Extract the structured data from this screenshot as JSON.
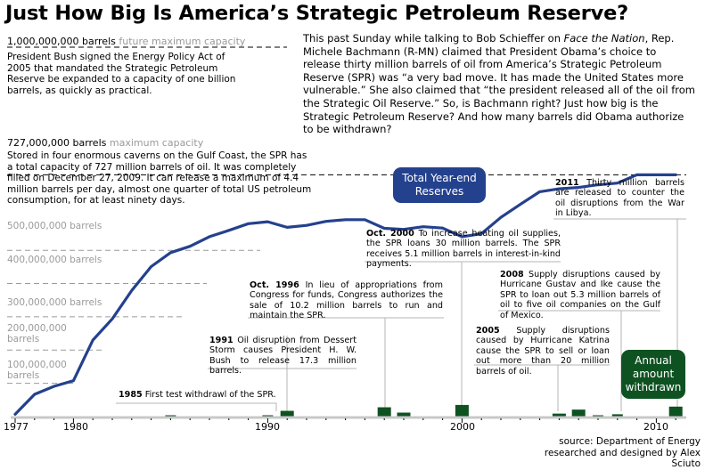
{
  "title": "Just How Big Is America’s Strategic Petroleum Reserve?",
  "capacity_future": {
    "value": "1,000,000,000 barrels",
    "label": "future maximum capacity"
  },
  "bush_text": "President Bush signed the Energy Policy Act of 2005 that mandated the Strategic Petroleum Reserve be expanded to a capacity of one billion barrels, as quickly as practical.",
  "intro": {
    "p1": "This past Sunday while talking to Bob Schieffer on ",
    "show": "Face the Nation",
    "p2": ", Rep. Michele Bachmann (R-MN) claimed that President Obama’s choice to release thirty million barrels of oil from America’s Strategic Petroleum Reserve (SPR) was “a very bad move. It has made the United States more vulnerable.” She also claimed that “the president released all of the oil from the Strategic Oil Reserve.” So, is Bachmann right? Just how big is the Strategic Petroleum Reserve? And how many barrels did Obama authorize to be withdrawn?"
  },
  "capacity_max": {
    "value": "727,000,000 barrels",
    "label": "maximum capacity"
  },
  "caverns_text": "Stored in four enormous caverns on the Gulf Coast, the SPR has a total capacity of 727 million barrels of oil. It was completely filled on December 27, 2009. It can release a maximum of 4.4 million barrels per day, almost one quarter of total US petroleum consumption, for at least ninety days.",
  "y_labels": [
    "500,000,000 barrels",
    "400,000,000 barrels",
    "300,000,000 barrels",
    "200,000,000 barrels",
    "100,000,000 barrels"
  ],
  "x_labels": [
    "1977",
    "1980",
    "1990",
    "2000",
    "2010"
  ],
  "pill_total": "Total Year-end Reserves",
  "pill_annual": "Annual amount withdrawn",
  "annotations": {
    "a1985": {
      "year": "1985",
      "text": " First test withdrawl of the SPR."
    },
    "a1991": {
      "year": "1991",
      "text": " Oil disruption from Dessert Storm causes President H. W. Bush to release 17.3 million barrels."
    },
    "a1996": {
      "year": "Oct. 1996",
      "text": " In lieu of appropriations from Congress for funds, Congress authorizes the sale of 10.2 million barrels to run and maintain the SPR."
    },
    "a2000": {
      "year": "Oct. 2000",
      "text": " To increase heating oil supplies, the SPR loans 30 million barrels. The SPR receives 5.1 million barrels in interest-in-kind payments."
    },
    "a2005": {
      "year": "2005",
      "text": " Supply disruptions caused by Hurricane Katrina cause the SPR to sell or loan out more than 20 million barrels of oil."
    },
    "a2008": {
      "year": "2008",
      "text": " Supply disruptions caused by Hurricane Gustav and Ike cause the SPR to loan out 5.3 million barrels of oil to five oil companies on the Gulf of Mexico."
    },
    "a2011": {
      "year": "2011",
      "text": " Thirty million barrels are released to counter the oil disruptions from the War in Libya."
    }
  },
  "source": "source: Department of Energy",
  "credit": "researched and designed by Alex Sciuto",
  "colors": {
    "reserve_line": "#24418d",
    "withdrawal_bar": "#0f5222",
    "gridline": "#9a9a9a",
    "leader_line": "#b4b4b4"
  },
  "chart_data": {
    "type": "line",
    "title": "Just How Big Is America’s Strategic Petroleum Reserve?",
    "xlabel": "",
    "ylabel": "barrels",
    "xlim": [
      1977,
      2011
    ],
    "ylim": [
      0,
      1000000000
    ],
    "series": [
      {
        "name": "Total Year-end Reserves",
        "x": [
          1977,
          1978,
          1979,
          1980,
          1981,
          1982,
          1983,
          1984,
          1985,
          1986,
          1987,
          1988,
          1989,
          1990,
          1991,
          1992,
          1993,
          1994,
          1995,
          1996,
          1997,
          1998,
          1999,
          2000,
          2001,
          2002,
          2003,
          2004,
          2005,
          2006,
          2007,
          2008,
          2009,
          2010,
          2011
        ],
        "values": [
          7000000,
          67000000,
          91000000,
          108000000,
          230000000,
          294000000,
          379000000,
          451000000,
          493000000,
          512000000,
          541000000,
          560000000,
          580000000,
          586000000,
          569000000,
          575000000,
          587000000,
          592000000,
          592000000,
          566000000,
          563000000,
          571000000,
          567000000,
          541000000,
          550000000,
          599000000,
          638000000,
          676000000,
          685000000,
          689000000,
          697000000,
          702000000,
          727000000,
          727000000,
          727000000
        ]
      },
      {
        "name": "Annual amount withdrawn",
        "type": "bar",
        "x": [
          1985,
          1990,
          1991,
          1996,
          1997,
          2000,
          2005,
          2006,
          2007,
          2008,
          2011
        ],
        "values": [
          1000000,
          4000000,
          17300000,
          28000000,
          12000000,
          35000000,
          9000000,
          21000000,
          4000000,
          7000000,
          30000000
        ]
      }
    ],
    "reference_lines": [
      {
        "value": 1000000000,
        "label": "1,000,000,000 barrels future maximum capacity"
      },
      {
        "value": 727000000,
        "label": "727,000,000 barrels maximum capacity"
      }
    ],
    "grid": false
  }
}
